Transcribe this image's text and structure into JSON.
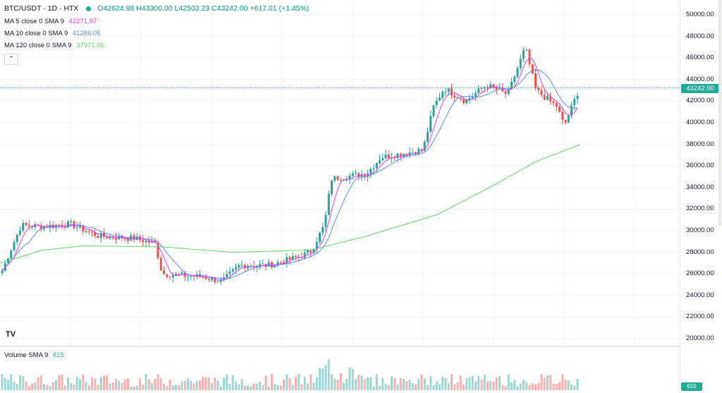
{
  "symbol": {
    "pair": "BTC/USDT",
    "interval": "1D",
    "exchange": "HTX",
    "open": "O42624.98",
    "high": "H43300.00",
    "low": "L42503.23",
    "close": "C43242.00",
    "change": "+617.01 (+1.45%)"
  },
  "indicators": [
    {
      "name": "MA 5 close 0 SMA 9",
      "value": "42271.97",
      "color": "#e040fb"
    },
    {
      "name": "MA 10 close 0 SMA 9",
      "value": "41286.05",
      "color": "#5b8def"
    },
    {
      "name": "MA 120 close 0 SMA 9",
      "value": "37971.05",
      "color": "#66d36e"
    }
  ],
  "collapse_icon": "chevron-up-icon",
  "price_axis": [
    "50000.00",
    "48000.00",
    "46000.00",
    "44000.00",
    "42000.00",
    "40000.00",
    "38000.00",
    "36000.00",
    "34000.00",
    "32000.00",
    "30000.00",
    "28000.00",
    "26000.00",
    "24000.00",
    "22000.00",
    "20000.00"
  ],
  "last_price": "43242.00",
  "volume": {
    "label": "Volume SMA 9",
    "value": "615",
    "badge": "615"
  },
  "colors": {
    "up": "#26a69a",
    "down": "#ef5350",
    "ma5": "#e040fb",
    "ma10": "#5b8def",
    "ma120": "#66d36e"
  },
  "logo": "TV"
}
